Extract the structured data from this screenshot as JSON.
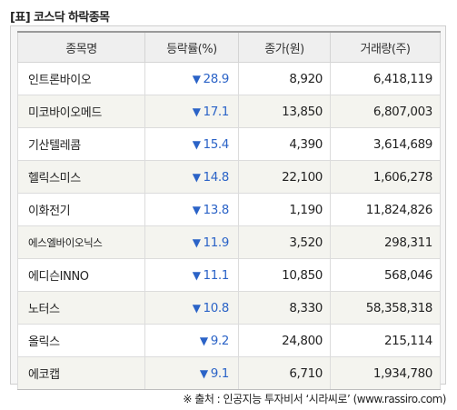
{
  "title": "[표] 코스닥 하락종목",
  "table": {
    "headers": [
      "종목명",
      "등락률(%)",
      "종가(원)",
      "거래량(주)"
    ],
    "down_symbol": "▼",
    "rows": [
      {
        "name": "인트론바이오",
        "rate": "28.9",
        "close": "8,920",
        "volume": "6,418,119"
      },
      {
        "name": "미코바이오메드",
        "rate": "17.1",
        "close": "13,850",
        "volume": "6,807,003"
      },
      {
        "name": "기산텔레콤",
        "rate": "15.4",
        "close": "4,390",
        "volume": "3,614,689"
      },
      {
        "name": "헬릭스미스",
        "rate": "14.8",
        "close": "22,100",
        "volume": "1,606,278"
      },
      {
        "name": "이화전기",
        "rate": "13.8",
        "close": "1,190",
        "volume": "11,824,826"
      },
      {
        "name": "에스엘바이오닉스",
        "rate": "11.9",
        "close": "3,520",
        "volume": "298,311"
      },
      {
        "name": "에디슨INNO",
        "rate": "11.1",
        "close": "10,850",
        "volume": "568,046"
      },
      {
        "name": "노터스",
        "rate": "10.8",
        "close": "8,330",
        "volume": "58,358,318"
      },
      {
        "name": "올릭스",
        "rate": "9.2",
        "close": "24,800",
        "volume": "215,114"
      },
      {
        "name": "에코캡",
        "rate": "9.1",
        "close": "6,710",
        "volume": "1,934,780"
      }
    ]
  },
  "source": "※ 출처 : 인공지능 투자비서 ‘시라씨로’ (www.rassiro.com)",
  "colors": {
    "down": "#2b63c7",
    "header_bg": "#efefef",
    "row_alt_bg": "#f4f4ef"
  }
}
